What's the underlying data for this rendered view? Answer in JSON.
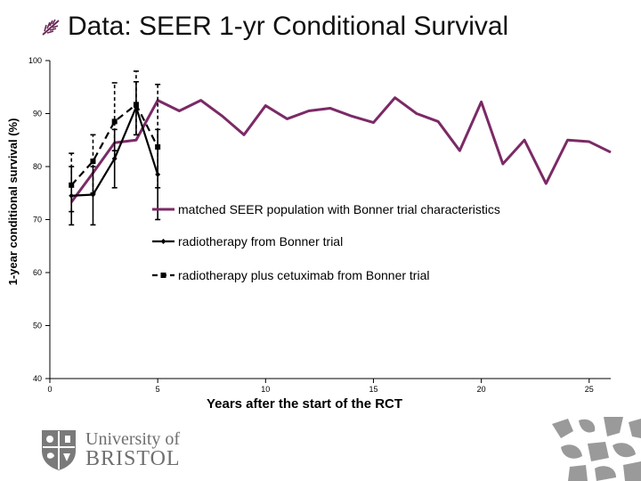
{
  "slide": {
    "title": "Data: SEER 1-yr Conditional Survival",
    "bullet_icon": "tick-bullet-icon"
  },
  "chart_data": {
    "type": "line",
    "title": "",
    "xlabel": "Years after the start of the RCT",
    "ylabel": "1-year conditional survival (%)",
    "xlim": [
      0,
      26
    ],
    "ylim": [
      40,
      100
    ],
    "xticks": [
      0,
      5,
      10,
      15,
      20,
      25
    ],
    "yticks": [
      40,
      50,
      60,
      70,
      80,
      90,
      100
    ],
    "legend_position": "center-right",
    "series": [
      {
        "name": "matched SEER population with Bonner trial characteristics",
        "color": "#7b2a66",
        "marker": "none",
        "dash": "solid",
        "x": [
          1,
          2,
          3,
          4,
          5,
          6,
          7,
          8,
          9,
          10,
          11,
          12,
          13,
          14,
          15,
          16,
          17,
          18,
          19,
          20,
          21,
          22,
          23,
          24,
          25,
          26
        ],
        "y": [
          73.3,
          78.8,
          84.5,
          85,
          92.5,
          90.5,
          92.5,
          89.5,
          86,
          91.5,
          89,
          90.5,
          91,
          89.5,
          88.3,
          93,
          90,
          88.5,
          83,
          92.2,
          80.5,
          85,
          76.8,
          85,
          84.7,
          82.7
        ]
      },
      {
        "name": "radiotherapy from Bonner trial",
        "color": "#000000",
        "marker": "diamond",
        "dash": "solid",
        "x": [
          1,
          2,
          3,
          4,
          5
        ],
        "y": [
          74.5,
          74.7,
          81.5,
          91.2,
          78.5
        ],
        "err_low": [
          69,
          69,
          76,
          86,
          70
        ],
        "err_high": [
          80,
          80,
          87,
          96,
          87
        ]
      },
      {
        "name": "radiotherapy plus cetuximab from Bonner trial",
        "color": "#000000",
        "marker": "square",
        "dash": "dashed",
        "x": [
          1,
          2,
          3,
          4,
          5
        ],
        "y": [
          76.5,
          81,
          88.5,
          91.7,
          83.7
        ],
        "err_low": [
          71.5,
          75,
          83,
          86,
          76
        ],
        "err_high": [
          82.5,
          86,
          95.8,
          98,
          95.5
        ]
      }
    ]
  },
  "footer": {
    "logo_line1": "University of",
    "logo_line2": "BRISTOL",
    "logo_icon": "university-crest-icon",
    "pattern_icon": "heraldic-pattern-icon"
  }
}
